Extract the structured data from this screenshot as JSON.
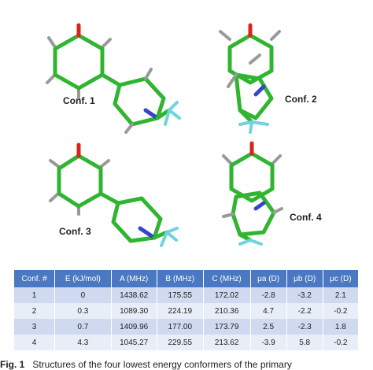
{
  "figure": {
    "labels": [
      "Conf. 1",
      "Conf. 2",
      "Conf. 3",
      "Conf. 4"
    ],
    "table": {
      "header": [
        "Conf. #",
        "E (kJ/mol)",
        "A (MHz)",
        "B (MHz)",
        "C (MHz)",
        "μa (D)",
        "μb (D)",
        "μc (D)"
      ],
      "rows": [
        [
          "1",
          "0",
          "1438.62",
          "175.55",
          "172.02",
          "-2.8",
          "-3.2",
          "2.1"
        ],
        [
          "2",
          "0.3",
          "1089.30",
          "224.19",
          "210.36",
          "4.7",
          "-2.2",
          "-0.2"
        ],
        [
          "3",
          "0.7",
          "1409.96",
          "177.00",
          "173.79",
          "2.5",
          "-2.3",
          "1.8"
        ],
        [
          "4",
          "4.3",
          "1045.27",
          "229.55",
          "213.62",
          "-3.9",
          "5.8",
          "-0.2"
        ]
      ]
    },
    "caption": {
      "number": "Fig. 1",
      "text": "Structures of the four lowest energy conformers of the primary"
    }
  }
}
